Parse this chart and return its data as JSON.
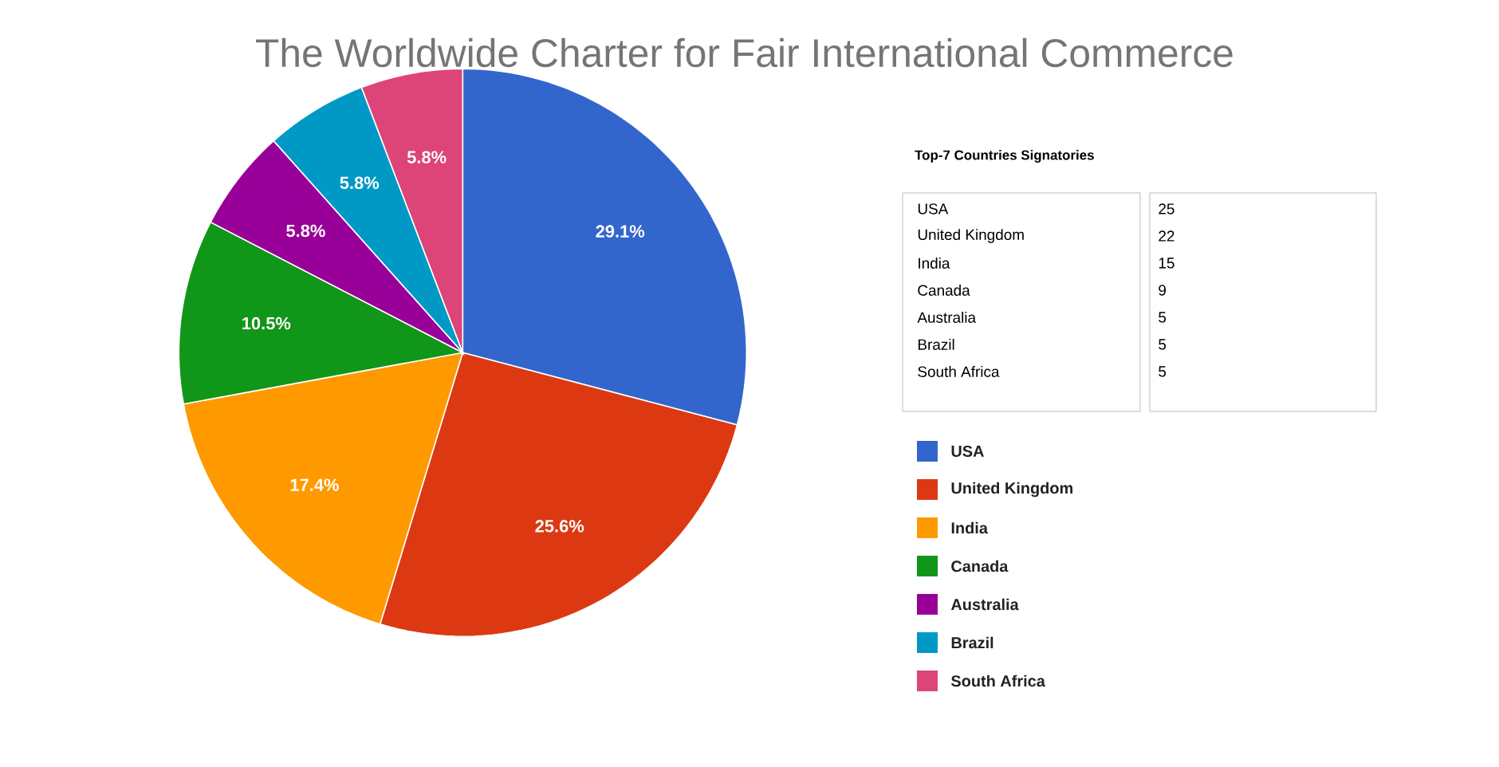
{
  "chart_data": {
    "type": "pie",
    "title": "The Worldwide Charter for Fair International Commerce",
    "categories": [
      "USA",
      "United Kingdom",
      "India",
      "Canada",
      "Australia",
      "Brazil",
      "South Africa"
    ],
    "values": [
      29.1,
      25.6,
      17.4,
      10.5,
      5.8,
      5.8,
      5.8
    ],
    "value_labels": [
      "29.1%",
      "25.6%",
      "17.4%",
      "10.5%",
      "5.8%",
      "5.8%",
      "5.8%"
    ],
    "colors": [
      "#3366cc",
      "#dc3912",
      "#ff9900",
      "#109618",
      "#990099",
      "#0099c6",
      "#dd4477"
    ],
    "legend": "right",
    "annotations": [
      "Top-7 Countries Signatories",
      "25",
      "22",
      "15",
      "9",
      "5",
      "5",
      "5"
    ]
  }
}
